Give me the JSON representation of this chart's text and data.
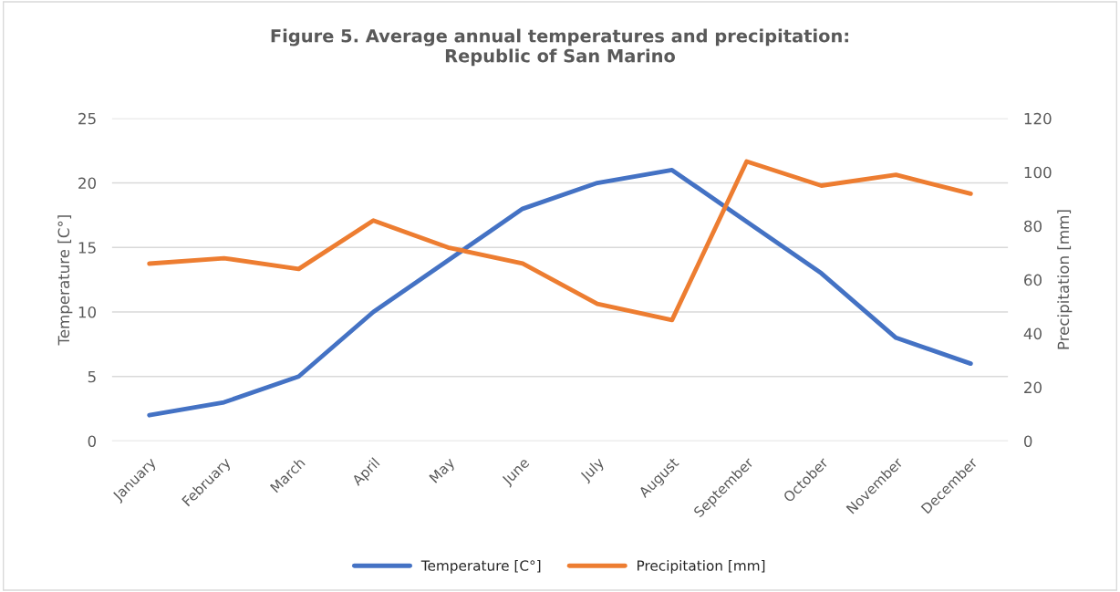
{
  "chart_data": {
    "type": "line",
    "title": "Figure 5. Average annual temperatures and precipitation:\nRepublic of San Marino",
    "ylabel": "Temperature [C°]",
    "y2label": "Precipitation [mm]",
    "categories": [
      "January",
      "February",
      "March",
      "April",
      "May",
      "June",
      "July",
      "August",
      "September",
      "October",
      "November",
      "December"
    ],
    "series": [
      {
        "name": "Temperature [C°]",
        "color": "#4472c4",
        "values": [
          2,
          3,
          5,
          10,
          14,
          18,
          20,
          21,
          17,
          13,
          8,
          6
        ]
      },
      {
        "name": "Precipitation [mm]",
        "color": "#ed7d31",
        "axis": "y2",
        "values": [
          66,
          68,
          64,
          82,
          72,
          66,
          51,
          45,
          104,
          95,
          99,
          92
        ]
      }
    ],
    "ylim": [
      0,
      25
    ],
    "yticks": [
      0,
      5,
      10,
      15,
      20,
      25
    ],
    "y2lim": [
      0,
      120
    ],
    "y2ticks": [
      0,
      20,
      40,
      60,
      80,
      100,
      120
    ],
    "grid": "y",
    "legend": "bottom",
    "line_style": "solid",
    "marker": "none"
  }
}
